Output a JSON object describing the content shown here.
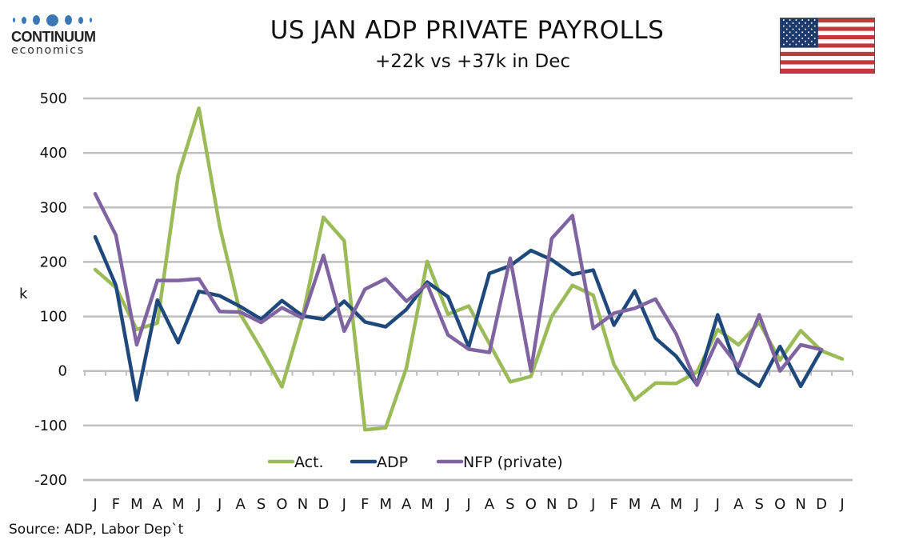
{
  "logo": {
    "name": "CONTINUUM",
    "sub": "economics"
  },
  "header": {
    "title": "US JAN ADP PRIVATE PAYROLLS",
    "subtitle": "+22k vs +37k in Dec",
    "flag": "us-flag-icon"
  },
  "source": "Source: ADP, Labor Dep`t",
  "colors": {
    "act": "#9bbb59",
    "adp": "#1f497d",
    "nfp": "#8064a2",
    "grid": "#bfbfbf"
  },
  "chart_data": {
    "type": "line",
    "title": "US JAN ADP PRIVATE PAYROLLS",
    "subtitle": "+22k vs +37k in Dec",
    "xlabel": "",
    "ylabel": "k",
    "ylim": [
      -200,
      500
    ],
    "yticks": [
      500,
      400,
      300,
      200,
      100,
      0,
      -100,
      -200
    ],
    "grid": true,
    "legend_position": "bottom-center",
    "x": [
      "J",
      "F",
      "M",
      "A",
      "M",
      "J",
      "J",
      "A",
      "S",
      "O",
      "N",
      "D",
      "J",
      "F",
      "M",
      "A",
      "M",
      "J",
      "J",
      "A",
      "S",
      "O",
      "N",
      "D",
      "J",
      "F",
      "M",
      "A",
      "M",
      "J",
      "J",
      "A",
      "S",
      "O",
      "N",
      "D",
      "J"
    ],
    "series": [
      {
        "name": "Act.",
        "color": "#9bbb59",
        "values": [
          186,
          153,
          76,
          88,
          359,
          482,
          265,
          104,
          40,
          -29,
          100,
          282,
          239,
          -108,
          -104,
          6,
          201,
          104,
          119,
          50,
          -20,
          -10,
          100,
          157,
          139,
          12,
          -53,
          -22,
          -23,
          -2,
          76,
          48,
          89,
          20,
          74,
          37,
          22
        ]
      },
      {
        "name": "ADP",
        "color": "#1f497d",
        "values": [
          246,
          157,
          -53,
          130,
          52,
          146,
          138,
          118,
          95,
          129,
          101,
          95,
          128,
          90,
          81,
          113,
          163,
          136,
          44,
          179,
          193,
          221,
          204,
          177,
          185,
          84,
          147,
          60,
          27,
          -25,
          103,
          -3,
          -28,
          45,
          -28,
          39,
          null
        ]
      },
      {
        "name": "NFP (private)",
        "color": "#8064a2",
        "values": [
          325,
          249,
          48,
          166,
          166,
          169,
          109,
          108,
          89,
          116,
          97,
          212,
          73,
          150,
          169,
          128,
          159,
          66,
          40,
          34,
          207,
          0,
          243,
          285,
          78,
          106,
          115,
          132,
          68,
          -26,
          58,
          8,
          103,
          0,
          48,
          39,
          null
        ]
      }
    ]
  }
}
